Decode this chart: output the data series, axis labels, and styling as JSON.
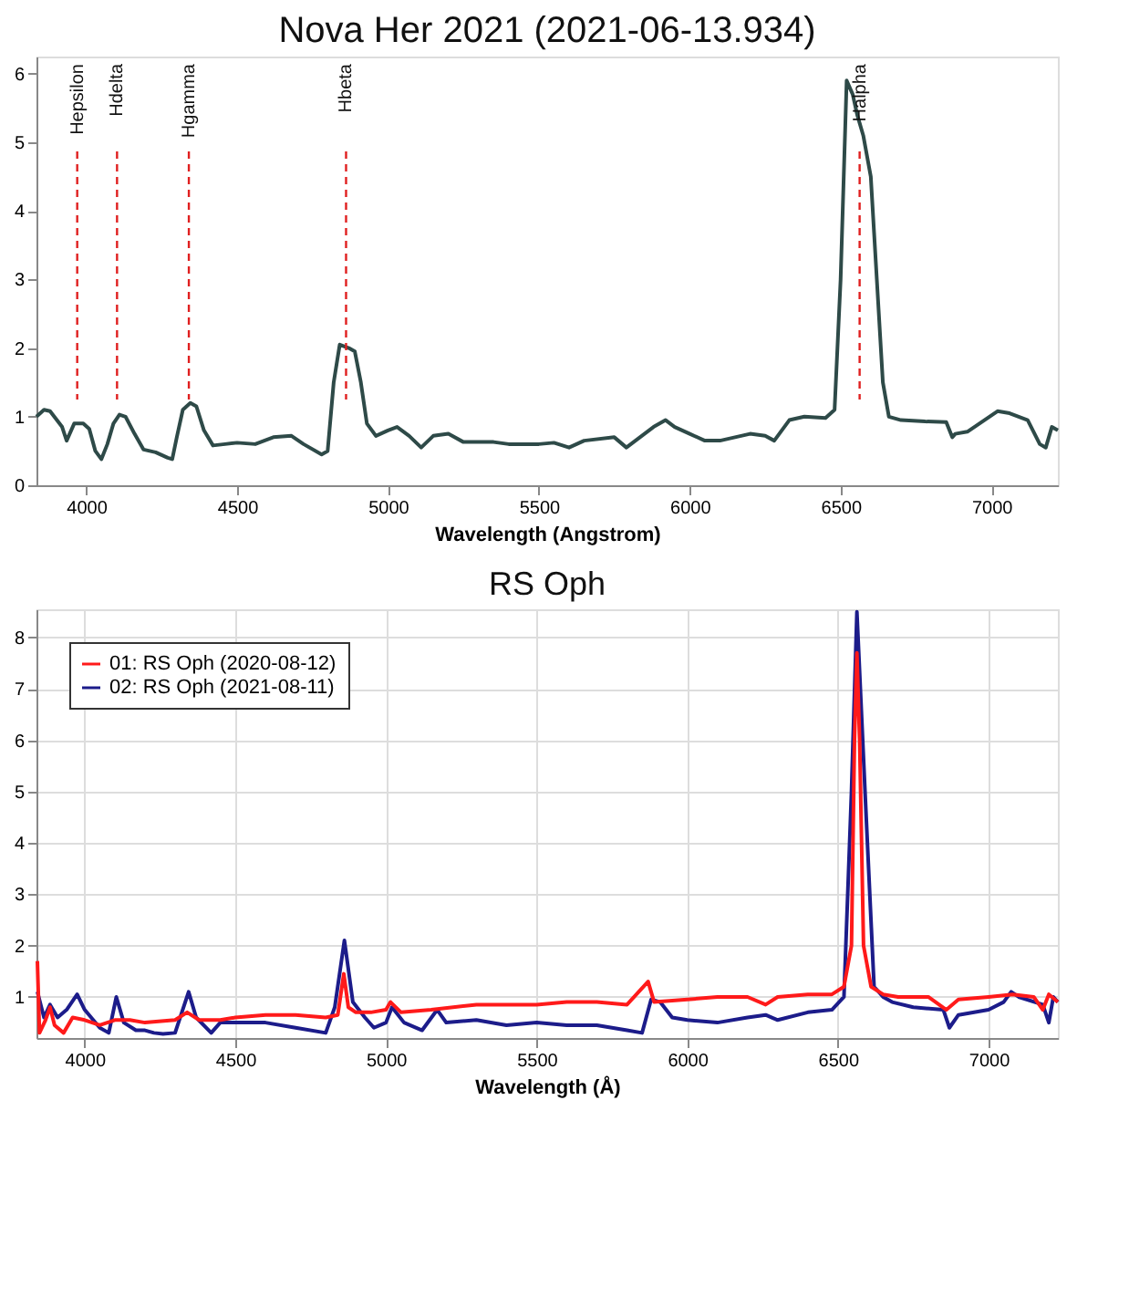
{
  "chart_data": [
    {
      "type": "line",
      "title": "Nova Her 2021 (2021-06-13.934)",
      "xlabel": "Wavelength (Angstrom)",
      "xlim": [
        3835,
        7220
      ],
      "ylim": [
        0,
        6.25
      ],
      "xticks": [
        4000,
        4500,
        5000,
        5500,
        6000,
        6500,
        7000
      ],
      "yticks": [
        0,
        1,
        2,
        3,
        4,
        5,
        6
      ],
      "grid": false,
      "series": [
        {
          "color": "#2e4a48",
          "x": [
            3835,
            3860,
            3880,
            3920,
            3935,
            3960,
            3990,
            4010,
            4030,
            4050,
            4070,
            4090,
            4110,
            4130,
            4160,
            4190,
            4230,
            4270,
            4285,
            4300,
            4320,
            4345,
            4365,
            4390,
            4420,
            4460,
            4500,
            4560,
            4620,
            4680,
            4720,
            4780,
            4800,
            4820,
            4840,
            4870,
            4890,
            4910,
            4930,
            4960,
            5000,
            5030,
            5070,
            5110,
            5150,
            5200,
            5250,
            5350,
            5400,
            5500,
            5550,
            5600,
            5650,
            5750,
            5790,
            5850,
            5880,
            5920,
            5950,
            6000,
            6050,
            6100,
            6200,
            6250,
            6280,
            6330,
            6380,
            6450,
            6480,
            6500,
            6520,
            6540,
            6555,
            6575,
            6600,
            6620,
            6640,
            6660,
            6700,
            6780,
            6850,
            6870,
            6880,
            6920,
            6960,
            7020,
            7060,
            7120,
            7160,
            7180,
            7200,
            7220
          ],
          "values": [
            1.0,
            1.1,
            1.08,
            0.85,
            0.65,
            0.9,
            0.9,
            0.82,
            0.5,
            0.38,
            0.6,
            0.9,
            1.03,
            1.0,
            0.75,
            0.52,
            0.48,
            0.4,
            0.38,
            0.7,
            1.1,
            1.2,
            1.15,
            0.8,
            0.58,
            0.6,
            0.62,
            0.6,
            0.7,
            0.72,
            0.6,
            0.45,
            0.5,
            1.5,
            2.05,
            2.0,
            1.95,
            1.5,
            0.9,
            0.72,
            0.8,
            0.85,
            0.72,
            0.55,
            0.72,
            0.75,
            0.63,
            0.63,
            0.6,
            0.6,
            0.62,
            0.55,
            0.65,
            0.7,
            0.55,
            0.75,
            0.85,
            0.95,
            0.85,
            0.75,
            0.65,
            0.65,
            0.75,
            0.72,
            0.65,
            0.95,
            1.0,
            0.98,
            1.1,
            3.0,
            5.9,
            5.7,
            5.4,
            5.1,
            4.5,
            3.0,
            1.5,
            1.0,
            0.95,
            0.93,
            0.92,
            0.7,
            0.75,
            0.78,
            0.9,
            1.08,
            1.05,
            0.95,
            0.6,
            0.55,
            0.85,
            0.8
          ]
        }
      ],
      "ref_lines": [
        {
          "axis": "x",
          "value": 3970,
          "label": "Hepsilon",
          "color": "#e02020",
          "line_style": "dashed"
        },
        {
          "axis": "x",
          "value": 4102,
          "label": "Hdelta",
          "color": "#e02020",
          "line_style": "dashed"
        },
        {
          "axis": "x",
          "value": 4340,
          "label": "Hgamma",
          "color": "#e02020",
          "line_style": "dashed"
        },
        {
          "axis": "x",
          "value": 4861,
          "label": "Hbeta",
          "color": "#e02020",
          "line_style": "dashed"
        },
        {
          "axis": "x",
          "value": 6563,
          "label": "Halpha",
          "color": "#e02020",
          "line_style": "dashed"
        }
      ]
    },
    {
      "type": "line",
      "title": "RS Oph",
      "xlabel": "Wavelength (Å)",
      "xlim": [
        3840,
        7230
      ],
      "ylim": [
        0.2,
        8.55
      ],
      "xticks": [
        4000,
        4500,
        5000,
        5500,
        6000,
        6500,
        7000
      ],
      "yticks": [
        1,
        2,
        3,
        4,
        5,
        6,
        7,
        8
      ],
      "grid": true,
      "legend": "top left",
      "series": [
        {
          "name": "01: RS Oph (2020-08-12)",
          "color": "#ff1a1a",
          "x": [
            3843,
            3850,
            3870,
            3885,
            3900,
            3930,
            3960,
            4000,
            4050,
            4100,
            4150,
            4200,
            4300,
            4340,
            4380,
            4450,
            4500,
            4600,
            4700,
            4800,
            4840,
            4860,
            4875,
            4900,
            4950,
            5000,
            5015,
            5050,
            5150,
            5300,
            5400,
            5500,
            5600,
            5700,
            5800,
            5870,
            5890,
            6000,
            6100,
            6200,
            6260,
            6300,
            6400,
            6480,
            6520,
            6545,
            6555,
            6563,
            6572,
            6585,
            6610,
            6650,
            6700,
            6800,
            6860,
            6900,
            7000,
            7080,
            7150,
            7180,
            7200,
            7230
          ],
          "values": [
            1.7,
            0.3,
            0.55,
            0.8,
            0.45,
            0.3,
            0.6,
            0.55,
            0.45,
            0.55,
            0.55,
            0.5,
            0.55,
            0.7,
            0.55,
            0.55,
            0.6,
            0.65,
            0.65,
            0.6,
            0.65,
            1.45,
            0.8,
            0.7,
            0.7,
            0.75,
            0.9,
            0.7,
            0.75,
            0.85,
            0.85,
            0.85,
            0.9,
            0.9,
            0.85,
            1.3,
            0.9,
            0.95,
            1.0,
            1.0,
            0.85,
            1.0,
            1.05,
            1.05,
            1.2,
            2.0,
            6.0,
            7.7,
            6.0,
            2.0,
            1.2,
            1.05,
            1.0,
            1.0,
            0.75,
            0.95,
            1.0,
            1.05,
            1.0,
            0.75,
            1.05,
            0.9
          ]
        },
        {
          "name": "02: RS Oph (2021-08-11)",
          "color": "#1c1c8a",
          "x": [
            3843,
            3865,
            3885,
            3910,
            3940,
            3975,
            4000,
            4050,
            4080,
            4105,
            4130,
            4170,
            4200,
            4230,
            4260,
            4300,
            4345,
            4370,
            4420,
            4450,
            4500,
            4600,
            4700,
            4800,
            4830,
            4862,
            4890,
            4930,
            4960,
            5000,
            5020,
            5060,
            5120,
            5170,
            5200,
            5300,
            5400,
            5500,
            5600,
            5700,
            5800,
            5850,
            5880,
            5910,
            5950,
            6000,
            6100,
            6200,
            6260,
            6300,
            6400,
            6480,
            6520,
            6545,
            6563,
            6590,
            6620,
            6650,
            6680,
            6750,
            6850,
            6870,
            6900,
            7000,
            7050,
            7075,
            7100,
            7180,
            7200,
            7215,
            7230
          ],
          "values": [
            1.1,
            0.6,
            0.85,
            0.6,
            0.75,
            1.05,
            0.75,
            0.4,
            0.3,
            1.0,
            0.5,
            0.35,
            0.35,
            0.3,
            0.28,
            0.3,
            1.1,
            0.6,
            0.3,
            0.5,
            0.5,
            0.5,
            0.4,
            0.3,
            0.8,
            2.1,
            0.9,
            0.6,
            0.4,
            0.5,
            0.8,
            0.5,
            0.35,
            0.75,
            0.5,
            0.55,
            0.45,
            0.5,
            0.45,
            0.45,
            0.35,
            0.3,
            0.95,
            0.9,
            0.6,
            0.55,
            0.5,
            0.6,
            0.65,
            0.55,
            0.7,
            0.75,
            1.0,
            5.0,
            8.5,
            5.0,
            1.2,
            1.0,
            0.9,
            0.8,
            0.75,
            0.4,
            0.65,
            0.75,
            0.9,
            1.1,
            1.0,
            0.85,
            0.5,
            1.0,
            0.9
          ]
        }
      ]
    }
  ]
}
